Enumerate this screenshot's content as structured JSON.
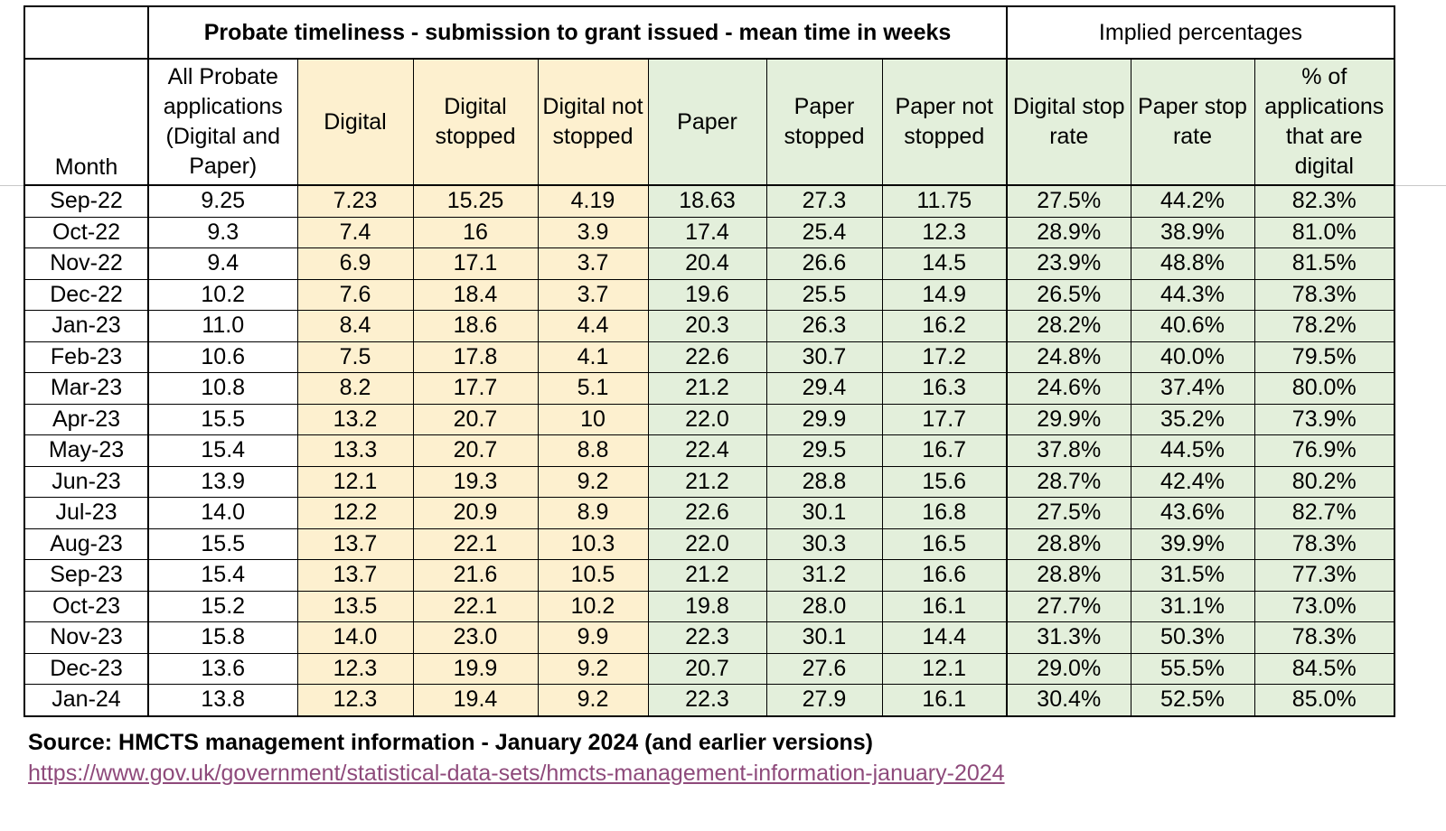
{
  "table": {
    "group_title": "Probate timeliness - submission to grant issued - mean time in weeks",
    "implied_title": "Implied percentages",
    "headers": {
      "month": "Month",
      "all": "All Probate applications (Digital and Paper)",
      "digital": "Digital",
      "digital_stopped": "Digital stopped",
      "digital_not_stopped": "Digital not stopped",
      "paper": "Paper",
      "paper_stopped": "Paper stopped",
      "paper_not_stopped": "Paper not stopped",
      "digital_stop_rate": "Digital stop rate",
      "paper_stop_rate": "Paper stop rate",
      "pct_digital": "% of applications that are digital"
    },
    "rows": [
      [
        "Sep-22",
        "9.25",
        "7.23",
        "15.25",
        "4.19",
        "18.63",
        "27.3",
        "11.75",
        "27.5%",
        "44.2%",
        "82.3%"
      ],
      [
        "Oct-22",
        "9.3",
        "7.4",
        "16",
        "3.9",
        "17.4",
        "25.4",
        "12.3",
        "28.9%",
        "38.9%",
        "81.0%"
      ],
      [
        "Nov-22",
        "9.4",
        "6.9",
        "17.1",
        "3.7",
        "20.4",
        "26.6",
        "14.5",
        "23.9%",
        "48.8%",
        "81.5%"
      ],
      [
        "Dec-22",
        "10.2",
        "7.6",
        "18.4",
        "3.7",
        "19.6",
        "25.5",
        "14.9",
        "26.5%",
        "44.3%",
        "78.3%"
      ],
      [
        "Jan-23",
        "11.0",
        "8.4",
        "18.6",
        "4.4",
        "20.3",
        "26.3",
        "16.2",
        "28.2%",
        "40.6%",
        "78.2%"
      ],
      [
        "Feb-23",
        "10.6",
        "7.5",
        "17.8",
        "4.1",
        "22.6",
        "30.7",
        "17.2",
        "24.8%",
        "40.0%",
        "79.5%"
      ],
      [
        "Mar-23",
        "10.8",
        "8.2",
        "17.7",
        "5.1",
        "21.2",
        "29.4",
        "16.3",
        "24.6%",
        "37.4%",
        "80.0%"
      ],
      [
        "Apr-23",
        "15.5",
        "13.2",
        "20.7",
        "10",
        "22.0",
        "29.9",
        "17.7",
        "29.9%",
        "35.2%",
        "73.9%"
      ],
      [
        "May-23",
        "15.4",
        "13.3",
        "20.7",
        "8.8",
        "22.4",
        "29.5",
        "16.7",
        "37.8%",
        "44.5%",
        "76.9%"
      ],
      [
        "Jun-23",
        "13.9",
        "12.1",
        "19.3",
        "9.2",
        "21.2",
        "28.8",
        "15.6",
        "28.7%",
        "42.4%",
        "80.2%"
      ],
      [
        "Jul-23",
        "14.0",
        "12.2",
        "20.9",
        "8.9",
        "22.6",
        "30.1",
        "16.8",
        "27.5%",
        "43.6%",
        "82.7%"
      ],
      [
        "Aug-23",
        "15.5",
        "13.7",
        "22.1",
        "10.3",
        "22.0",
        "30.3",
        "16.5",
        "28.8%",
        "39.9%",
        "78.3%"
      ],
      [
        "Sep-23",
        "15.4",
        "13.7",
        "21.6",
        "10.5",
        "21.2",
        "31.2",
        "16.6",
        "28.8%",
        "31.5%",
        "77.3%"
      ],
      [
        "Oct-23",
        "15.2",
        "13.5",
        "22.1",
        "10.2",
        "19.8",
        "28.0",
        "16.1",
        "27.7%",
        "31.1%",
        "73.0%"
      ],
      [
        "Nov-23",
        "15.8",
        "14.0",
        "23.0",
        "9.9",
        "22.3",
        "30.1",
        "14.4",
        "31.3%",
        "50.3%",
        "78.3%"
      ],
      [
        "Dec-23",
        "13.6",
        "12.3",
        "19.9",
        "9.2",
        "20.7",
        "27.6",
        "12.1",
        "29.0%",
        "55.5%",
        "84.5%"
      ],
      [
        "Jan-24",
        "13.8",
        "12.3",
        "19.4",
        "9.2",
        "22.3",
        "27.9",
        "16.1",
        "30.4%",
        "52.5%",
        "85.0%"
      ]
    ]
  },
  "source": {
    "text": "Source: HMCTS management information - January 2024 (and earlier versions)",
    "url": "https://www.gov.uk/government/statistical-data-sets/hmcts-management-information-january-2024"
  },
  "colors": {
    "digital_fill": "#fdf0cf",
    "paper_fill": "#e3efdb",
    "link": "#8e4a7b"
  }
}
